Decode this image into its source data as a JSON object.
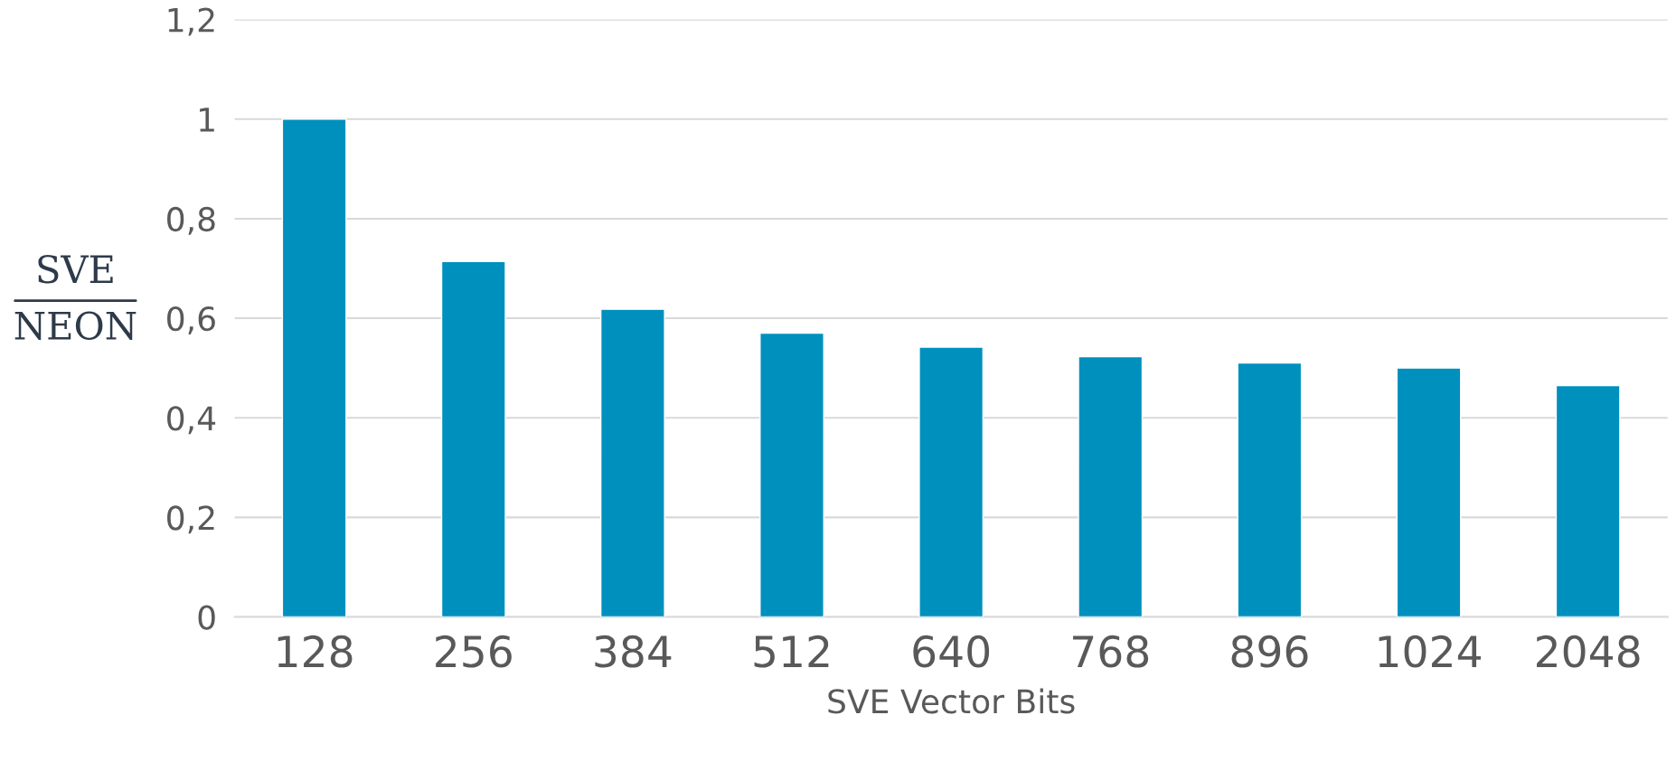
{
  "chart_data": {
    "type": "bar",
    "xlabel": "SVE Vector Bits",
    "ylabel": "SVE\nNEON",
    "categories": [
      "128",
      "256",
      "384",
      "512",
      "640",
      "768",
      "896",
      "1024",
      "2048"
    ],
    "values": [
      1.0,
      0.714,
      0.618,
      0.57,
      0.542,
      0.523,
      0.51,
      0.5,
      0.465
    ],
    "color": "#0090bd",
    "ylim": [
      0,
      1.2
    ],
    "yticks": [
      0,
      {
        "value": 0.2,
        "label": "0,2"
      },
      {
        "value": 0.4,
        "label": "0,4"
      },
      {
        "value": 0.6,
        "label": "0,6"
      },
      {
        "value": 0.8,
        "label": "0,8"
      },
      1,
      {
        "value": 1.2,
        "label": "1,2"
      }
    ],
    "grid": "y"
  }
}
